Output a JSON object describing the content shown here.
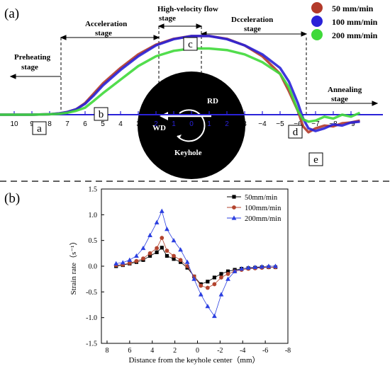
{
  "chart_data": [
    {
      "type": "line",
      "panel_label": "(a)",
      "legend": [
        {
          "name": "50 mm/min",
          "color": "#b33a2a"
        },
        {
          "name": "100 mm/min",
          "color": "#2a22d8"
        },
        {
          "name": "200 mm/min",
          "color": "#3fd93a"
        }
      ],
      "stages": [
        "Preheating stage",
        "Acceleration stage",
        "High-velocity flow stage",
        "Dcceleration stage",
        "Annealing stage"
      ],
      "x_ticks": [
        "10",
        "9",
        "8",
        "7",
        "6",
        "5",
        "4",
        "3",
        "2",
        "1",
        "0",
        "-1",
        "-2",
        "-3",
        "-4",
        "-5",
        "-6",
        "-7",
        "-8",
        "-9"
      ],
      "x_tick_labels_drawn": [
        "10",
        "9",
        "8",
        "7",
        "6",
        "5",
        "4",
        "3",
        "2",
        "1",
        "0",
        "1",
        "2",
        "3",
        "−4",
        "−5",
        "−6",
        "−7",
        "−8",
        "−9"
      ],
      "point_labels": [
        "a",
        "b",
        "c",
        "d",
        "e"
      ],
      "inset": {
        "rd_label": "RD",
        "wd_label": "WD",
        "center_label": "Keyhole"
      },
      "series": [
        {
          "name": "50 mm/min",
          "color": "#b33a2a",
          "x": [
            11,
            10,
            9,
            8,
            7.5,
            7,
            6.5,
            6,
            5.5,
            5,
            4,
            3,
            2,
            1,
            0,
            -1,
            -2,
            -3,
            -4,
            -5,
            -5.5,
            -6,
            -6.3,
            -6.6,
            -7,
            -7.5,
            -8,
            -8.5,
            -9,
            -9.5
          ],
          "y": [
            0,
            0,
            0,
            0.01,
            0.03,
            0.07,
            0.14,
            0.3,
            0.55,
            0.8,
            1.2,
            1.55,
            1.8,
            1.95,
            2.02,
            2.02,
            1.95,
            1.78,
            1.5,
            1.05,
            0.6,
            0.1,
            -0.3,
            -0.45,
            -0.35,
            -0.28,
            -0.3,
            -0.22,
            -0.2,
            -0.15
          ]
        },
        {
          "name": "100 mm/min",
          "color": "#2a22d8",
          "x": [
            11,
            10,
            9,
            8,
            7.5,
            7,
            6.5,
            6,
            5.5,
            5,
            4,
            3,
            2,
            1,
            0,
            -1,
            -2,
            -3,
            -4,
            -5,
            -5.5,
            -6,
            -6.3,
            -6.6,
            -7,
            -7.5,
            -8,
            -8.5,
            -9,
            -9.5
          ],
          "y": [
            0,
            0,
            0,
            0.01,
            0.03,
            0.07,
            0.14,
            0.28,
            0.5,
            0.75,
            1.15,
            1.5,
            1.78,
            1.94,
            2.02,
            2.02,
            1.94,
            1.78,
            1.55,
            1.2,
            0.85,
            0.3,
            -0.1,
            -0.35,
            -0.42,
            -0.35,
            -0.25,
            -0.28,
            -0.2,
            -0.18
          ]
        },
        {
          "name": "200 mm/min",
          "color": "#3fd93a",
          "x": [
            11,
            10,
            9,
            8,
            7.5,
            7,
            6.5,
            6,
            5.5,
            5,
            4,
            3,
            2,
            1,
            0,
            -1,
            -2,
            -3,
            -4,
            -5,
            -5.5,
            -6,
            -6.3,
            -6.6,
            -7,
            -7.5,
            -8,
            -8.5,
            -9,
            -9.5
          ],
          "y": [
            0,
            0,
            0,
            0.01,
            0.02,
            0.05,
            0.1,
            0.18,
            0.36,
            0.55,
            0.9,
            1.25,
            1.5,
            1.64,
            1.7,
            1.7,
            1.66,
            1.55,
            1.35,
            1.05,
            0.7,
            0.1,
            -0.12,
            -0.18,
            -0.15,
            -0.05,
            -0.1,
            0.0,
            -0.05,
            0.05
          ]
        }
      ]
    },
    {
      "type": "line",
      "panel_label": "(b)",
      "xlabel": "Distance from the keyhole center（mm）",
      "ylabel": "Strain rate（s⁻¹）",
      "xlim": [
        8.5,
        -8
      ],
      "ylim": [
        -1.5,
        1.5
      ],
      "x_ticks": [
        8,
        6,
        4,
        2,
        0,
        -2,
        -4,
        -6,
        -8
      ],
      "y_ticks": [
        "1.5",
        "1.0",
        "0.5",
        "0.0",
        "-0.5",
        "-1.0",
        "-1.5"
      ],
      "legend_position": "top-right",
      "series": [
        {
          "name": "50mm/min",
          "color": "#000000",
          "marker": "square",
          "x": [
            7.2,
            6.6,
            6.0,
            5.4,
            4.8,
            4.2,
            3.6,
            3.15,
            2.7,
            2.1,
            1.5,
            0.9,
            0.3,
            -0.3,
            -0.9,
            -1.5,
            -2.1,
            -2.7,
            -3.3,
            -3.9,
            -4.5,
            -5.1,
            -5.7,
            -6.3,
            -6.9
          ],
          "y": [
            0.0,
            0.02,
            0.05,
            0.08,
            0.12,
            0.2,
            0.27,
            0.36,
            0.2,
            0.14,
            0.08,
            -0.03,
            -0.2,
            -0.35,
            -0.3,
            -0.22,
            -0.15,
            -0.1,
            -0.07,
            -0.05,
            -0.04,
            -0.03,
            -0.02,
            -0.02,
            -0.02
          ]
        },
        {
          "name": "100mm/min",
          "color": "#b3442e",
          "marker": "circle",
          "x": [
            7.2,
            6.6,
            6.0,
            5.4,
            4.8,
            4.2,
            3.6,
            3.15,
            2.7,
            2.1,
            1.5,
            0.9,
            0.3,
            -0.3,
            -0.9,
            -1.5,
            -2.1,
            -2.7,
            -3.3,
            -3.9,
            -4.5,
            -5.1,
            -5.7,
            -6.3,
            -6.9
          ],
          "y": [
            0.02,
            0.03,
            0.06,
            0.1,
            0.15,
            0.25,
            0.35,
            0.55,
            0.3,
            0.2,
            0.12,
            0.0,
            -0.2,
            -0.38,
            -0.42,
            -0.35,
            -0.22,
            -0.15,
            -0.1,
            -0.07,
            -0.05,
            -0.04,
            -0.03,
            -0.02,
            -0.02
          ]
        },
        {
          "name": "200mm/min",
          "color": "#2b3fe0",
          "marker": "triangle",
          "x": [
            7.2,
            6.6,
            6.0,
            5.4,
            4.8,
            4.2,
            3.6,
            3.15,
            2.7,
            2.1,
            1.5,
            0.9,
            0.3,
            -0.3,
            -0.9,
            -1.5,
            -2.1,
            -2.7,
            -3.3,
            -3.9,
            -4.5,
            -5.1,
            -5.7,
            -6.3,
            -6.9
          ],
          "y": [
            0.05,
            0.07,
            0.12,
            0.2,
            0.35,
            0.6,
            0.85,
            1.07,
            0.72,
            0.5,
            0.32,
            0.08,
            -0.25,
            -0.55,
            -0.78,
            -0.97,
            -0.55,
            -0.25,
            -0.1,
            -0.05,
            -0.03,
            -0.02,
            -0.01,
            0.0,
            0.0
          ]
        }
      ]
    }
  ]
}
